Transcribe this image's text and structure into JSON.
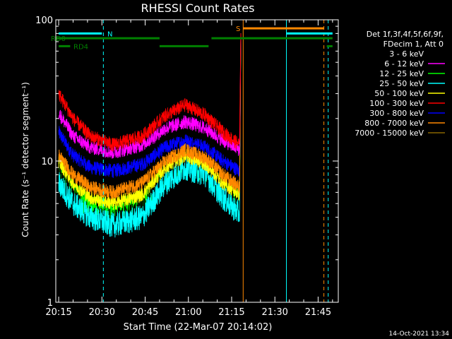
{
  "chart_data": {
    "type": "line",
    "title": "RHESSI Count Rates",
    "xlabel": "Start Time (22-Mar-07 20:14:02)",
    "ylabel": "Count Rate (s⁻¹ detector segment⁻¹)",
    "y_scale": "log",
    "ylim": [
      1,
      100
    ],
    "xlim_minutes": [
      0,
      98
    ],
    "x_ticks": [
      {
        "label": "20:15",
        "min": 1
      },
      {
        "label": "20:30",
        "min": 16
      },
      {
        "label": "20:45",
        "min": 31
      },
      {
        "label": "21:00",
        "min": 46
      },
      {
        "label": "21:15",
        "min": 61
      },
      {
        "label": "21:30",
        "min": 76
      },
      {
        "label": "21:45",
        "min": 91
      }
    ],
    "y_ticks": [
      {
        "label": "1",
        "value": 1
      },
      {
        "label": "10",
        "value": 10
      },
      {
        "label": "100",
        "value": 100
      }
    ],
    "legend": {
      "position": "right",
      "header": [
        "Det 1f,3f,4f,5f,6f,9f,",
        "FDecim 1, Att 0"
      ],
      "entries": [
        {
          "label": "3 - 6 keV",
          "color": "#000000"
        },
        {
          "label": "6 - 12 keV",
          "color": "#ff00ff"
        },
        {
          "label": "12 - 25 keV",
          "color": "#00ff00"
        },
        {
          "label": "25 - 50 keV",
          "color": "#00ffff"
        },
        {
          "label": "50 - 100 keV",
          "color": "#ffff00"
        },
        {
          "label": "100 - 300 keV",
          "color": "#ff0000"
        },
        {
          "label": "300 - 800 keV",
          "color": "#0000ff"
        },
        {
          "label": "800 - 7000 keV",
          "color": "#ff8800"
        },
        {
          "label": "7000 - 15000 keV",
          "color": "#886600"
        }
      ]
    },
    "series": [
      {
        "name": "3 - 6 keV",
        "color": "#000000",
        "min": [
          1,
          6,
          12,
          20,
          30,
          38,
          45,
          52,
          58,
          63.8
        ],
        "values": [
          7.5,
          5,
          3.5,
          3.3,
          4.2,
          8,
          10,
          9,
          6,
          4
        ]
      },
      {
        "name": "6 - 12 keV",
        "color": "#ff00ff",
        "min": [
          1,
          6,
          12,
          20,
          30,
          38,
          45,
          52,
          58,
          63.8
        ],
        "values": [
          22,
          15,
          12.5,
          11.5,
          13,
          17,
          19,
          17,
          14,
          12
        ]
      },
      {
        "name": "12 - 25 keV",
        "color": "#00ff00",
        "min": [
          1,
          6,
          12,
          20,
          30,
          38,
          45,
          52,
          58,
          63.8
        ],
        "values": [
          9,
          6,
          4.8,
          4.3,
          5,
          8,
          10,
          8.5,
          6.5,
          5
        ]
      },
      {
        "name": "25 - 50 keV",
        "color": "#00ffff",
        "min": [
          1,
          6,
          12,
          20,
          30,
          38,
          45,
          52,
          58,
          63.8
        ],
        "values": [
          7,
          5,
          4,
          3.5,
          4,
          7,
          9,
          8,
          5.5,
          4.2
        ]
      },
      {
        "name": "50 - 100 keV",
        "color": "#ffff00",
        "min": [
          1,
          6,
          12,
          20,
          30,
          38,
          45,
          52,
          58,
          63.8
        ],
        "values": [
          10,
          7,
          5.5,
          5,
          5.8,
          9,
          11,
          9.5,
          7,
          5.8
        ]
      },
      {
        "name": "100 - 300 keV",
        "color": "#ff0000",
        "min": [
          1,
          6,
          12,
          20,
          30,
          38,
          45,
          52,
          58,
          63.8
        ],
        "values": [
          30,
          20,
          15,
          13,
          15,
          21,
          25,
          21,
          16,
          13
        ]
      },
      {
        "name": "300 - 800 keV",
        "color": "#0000ff",
        "min": [
          1,
          6,
          12,
          20,
          30,
          38,
          45,
          52,
          58,
          63.8
        ],
        "values": [
          16,
          11,
          9,
          8.5,
          9.5,
          12.5,
          14,
          12.5,
          10,
          8.5
        ]
      },
      {
        "name": "800 - 7000 keV",
        "color": "#ff8800",
        "min": [
          1,
          6,
          12,
          20,
          30,
          38,
          45,
          52,
          58,
          63.8
        ],
        "values": [
          11,
          8,
          6.5,
          6,
          7,
          10,
          12,
          10.5,
          8,
          6.5
        ]
      }
    ],
    "flags": [
      {
        "label": "RD0",
        "label_color": "#008000",
        "level": 74,
        "color": "#008000",
        "segments": [
          [
            0,
            36
          ],
          [
            54,
            96
          ]
        ]
      },
      {
        "label": "RD4",
        "label_color": "#008000",
        "level": 65,
        "color": "#008000",
        "segments": [
          [
            1,
            5
          ],
          [
            36,
            53
          ],
          [
            94,
            96
          ]
        ]
      },
      {
        "label": "N",
        "label_color": "#00ffff",
        "level": 80,
        "color": "#00ffff",
        "segments": [
          [
            1,
            16
          ],
          [
            80,
            96
          ]
        ]
      },
      {
        "label": "S",
        "label_color": "#ff8800",
        "level": 87,
        "color": "#ff8800",
        "segments": [
          [
            65,
            93
          ]
        ]
      }
    ],
    "vlines": [
      {
        "min": 16.5,
        "color": "#00ffff",
        "style": "dashed"
      },
      {
        "min": 65,
        "color": "#ff8800",
        "style": "solid"
      },
      {
        "min": 80,
        "color": "#00ffff",
        "style": "solid"
      },
      {
        "min": 93,
        "color": "#ff8800",
        "style": "dashed"
      },
      {
        "min": 94.5,
        "color": "#00ffff",
        "style": "dashed"
      }
    ],
    "flare_spike": {
      "min": 64.2,
      "peak": 80
    }
  },
  "timestamp": "14-Oct-2021 13:34"
}
